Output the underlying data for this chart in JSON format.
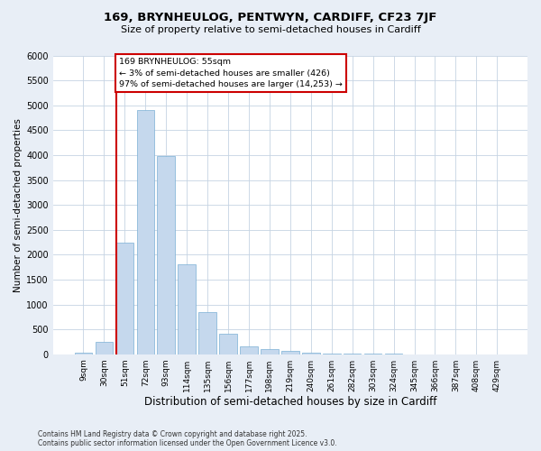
{
  "title1": "169, BRYNHEULOG, PENTWYN, CARDIFF, CF23 7JF",
  "title2": "Size of property relative to semi-detached houses in Cardiff",
  "xlabel": "Distribution of semi-detached houses by size in Cardiff",
  "ylabel": "Number of semi-detached properties",
  "categories": [
    "9sqm",
    "30sqm",
    "51sqm",
    "72sqm",
    "93sqm",
    "114sqm",
    "135sqm",
    "156sqm",
    "177sqm",
    "198sqm",
    "219sqm",
    "240sqm",
    "261sqm",
    "282sqm",
    "303sqm",
    "324sqm",
    "345sqm",
    "366sqm",
    "387sqm",
    "408sqm",
    "429sqm"
  ],
  "values": [
    30,
    250,
    2250,
    4900,
    3980,
    1800,
    840,
    410,
    160,
    100,
    70,
    40,
    20,
    12,
    8,
    5,
    3,
    2,
    1,
    1,
    0
  ],
  "bar_color": "#c5d8ed",
  "bar_edgecolor": "#7aafd4",
  "vline_color": "#cc0000",
  "vline_at_index": 2,
  "annotation_title": "169 BRYNHEULOG: 55sqm",
  "annotation_line1": "← 3% of semi-detached houses are smaller (426)",
  "annotation_line2": "97% of semi-detached houses are larger (14,253) →",
  "annotation_box_edgecolor": "#cc0000",
  "ylim": [
    0,
    6000
  ],
  "yticks": [
    0,
    500,
    1000,
    1500,
    2000,
    2500,
    3000,
    3500,
    4000,
    4500,
    5000,
    5500,
    6000
  ],
  "footnote": "Contains HM Land Registry data © Crown copyright and database right 2025.\nContains public sector information licensed under the Open Government Licence v3.0.",
  "bg_color": "#e8eef6",
  "plot_bg_color": "#ffffff",
  "grid_color": "#c5d3e3",
  "title1_fontsize": 9.5,
  "title2_fontsize": 8.0,
  "ylabel_fontsize": 7.5,
  "xlabel_fontsize": 8.5,
  "tick_fontsize": 7.0,
  "xtick_fontsize": 6.5,
  "footnote_fontsize": 5.5
}
